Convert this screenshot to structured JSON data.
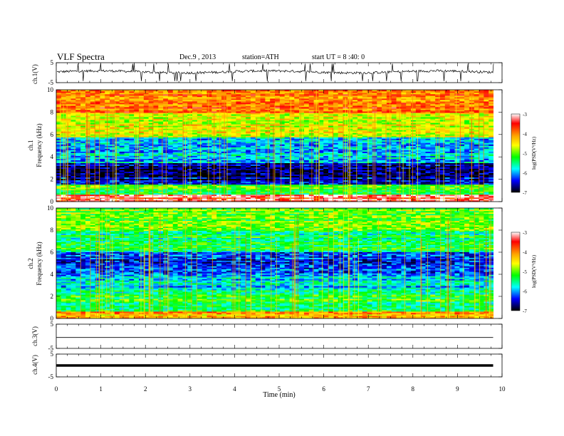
{
  "header": {
    "title": "VLF  Spectra",
    "date": "Dec.9  , 2013",
    "station": "station=ATH",
    "start": "start  UT  =   8 :40: 0"
  },
  "chart_data": [
    {
      "type": "line",
      "panel": "ch1-waveform",
      "ylabel": "ch.1(V)",
      "ylim": [
        -5,
        5
      ],
      "yticks": [
        "5",
        "-5"
      ],
      "x_range_min": [
        0,
        10
      ],
      "description_series": "voltage trace, baseline near 0.5 V with spikes"
    },
    {
      "type": "heatmap",
      "panel": "ch1-spectrogram",
      "ylabel": "ch.1\nFrequency (kHz)",
      "ylabel_line1": "ch.1",
      "ylabel_line2": "Frequency  (kHz)",
      "ylim": [
        0,
        10
      ],
      "yticks": [
        "0",
        "2",
        "4",
        "6",
        "8",
        "10"
      ],
      "colorbar": {
        "label": "log(PSD(V²/Hz)",
        "range": [
          -7,
          -3
        ],
        "ticks": [
          "-3",
          "-4",
          "-5",
          "-6",
          "-7"
        ]
      },
      "bands": [
        {
          "from": 0,
          "to": 0.7,
          "level": -3.3
        },
        {
          "from": 0.7,
          "to": 1.5,
          "level": -5.2
        },
        {
          "from": 1.5,
          "to": 3.5,
          "level": -6.6
        },
        {
          "from": 3.5,
          "to": 5.8,
          "level": -5.9
        },
        {
          "from": 5.8,
          "to": 8,
          "level": -4.6
        },
        {
          "from": 8,
          "to": 10,
          "level": -3.9
        }
      ]
    },
    {
      "type": "heatmap",
      "panel": "ch2-spectrogram",
      "ylabel_line1": "ch.2",
      "ylabel_line2": "Frequency  (kHz)",
      "ylim": [
        0,
        10
      ],
      "yticks": [
        "0",
        "2",
        "4",
        "6",
        "8",
        "10"
      ],
      "colorbar": {
        "label": "log(PSD(V²/Hz)",
        "range": [
          -7,
          -3
        ],
        "ticks": [
          "-3",
          "-4",
          "-5",
          "-6",
          "-7"
        ]
      },
      "bands": [
        {
          "from": 0,
          "to": 0.6,
          "level": -4.2
        },
        {
          "from": 0.6,
          "to": 2.5,
          "level": -5.3
        },
        {
          "from": 2.5,
          "to": 4,
          "level": -5.9
        },
        {
          "from": 4,
          "to": 6,
          "level": -6.3
        },
        {
          "from": 6,
          "to": 8,
          "level": -5.4
        },
        {
          "from": 8,
          "to": 10,
          "level": -5.0
        }
      ]
    },
    {
      "type": "line",
      "panel": "ch3-waveform",
      "ylabel": "ch.3(V)",
      "ylim": [
        -5,
        5
      ],
      "yticks": [
        "5",
        "-5"
      ],
      "x": [
        0,
        9.8
      ],
      "y": [
        -0.5,
        -0.5
      ]
    },
    {
      "type": "line",
      "panel": "ch4-waveform",
      "ylabel": "ch.4(V)",
      "ylim": [
        -5,
        5
      ],
      "yticks": [
        "5",
        "-5"
      ],
      "x": [
        0,
        9.8
      ],
      "y": [
        0,
        0
      ]
    }
  ],
  "xaxis": {
    "label": "Time  (min)",
    "range": [
      0,
      10
    ],
    "ticks": [
      "0",
      "1",
      "2",
      "3",
      "4",
      "5",
      "6",
      "7",
      "8",
      "9",
      "10"
    ]
  }
}
